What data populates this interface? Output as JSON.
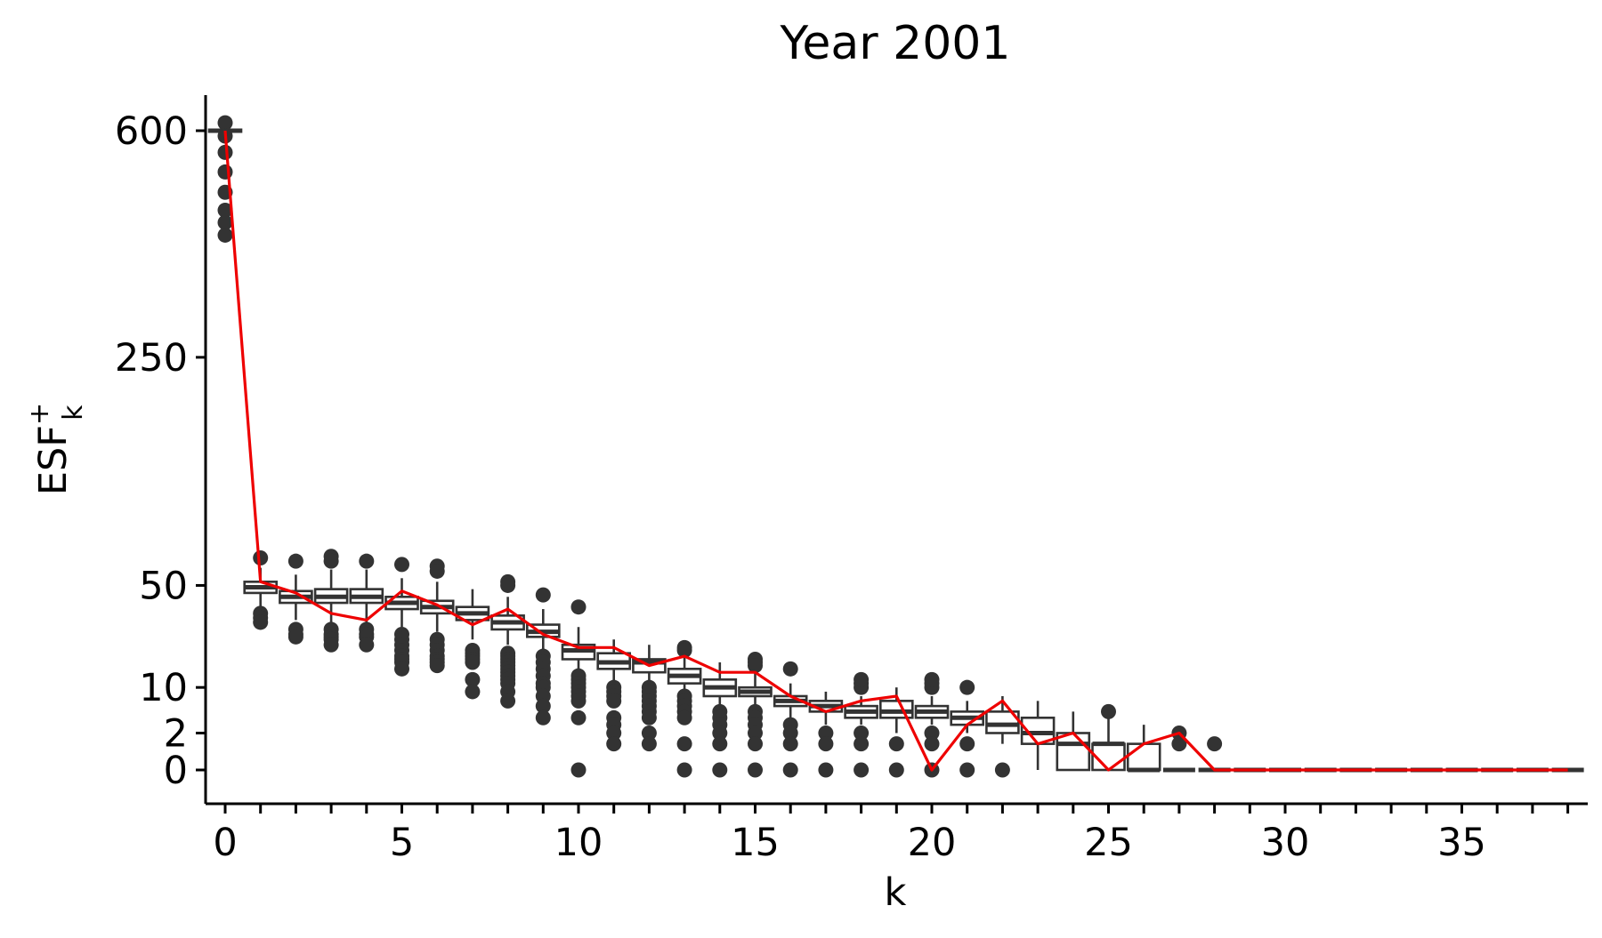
{
  "chart_data": {
    "type": "box",
    "title": "Year 2001",
    "xlabel": "k",
    "ylabel": {
      "main": "ESF",
      "superscript": "+",
      "subscript": "k"
    },
    "y_scale": "pseudo-log",
    "x_ticks": [
      0,
      5,
      10,
      15,
      20,
      25,
      30,
      35
    ],
    "x_tick_labels": [
      "0",
      "5",
      "10",
      "15",
      "20",
      "25",
      "30",
      "35"
    ],
    "y_ticks": [
      0,
      2,
      10,
      50,
      250,
      600
    ],
    "y_tick_labels": [
      "0",
      "2",
      "10",
      "50",
      "250",
      "600"
    ],
    "xlim": [
      -0.5,
      38.5
    ],
    "grid": false,
    "legend": "none",
    "colors": {
      "box": "#333333",
      "outlier": "#333333",
      "observed_line": "#ee0000"
    },
    "boxes": [
      {
        "k": 0,
        "q1": 598,
        "median": 600,
        "q3": 602,
        "wlo": 596,
        "whi": 604,
        "outliers": [
          615,
          590,
          560,
          525,
          490,
          460,
          440,
          420
        ]
      },
      {
        "k": 1,
        "q1": 46,
        "median": 49,
        "q3": 52,
        "wlo": 38,
        "whi": 60,
        "outliers": [
          36,
          34,
          32,
          66
        ]
      },
      {
        "k": 2,
        "q1": 41,
        "median": 44,
        "q3": 47,
        "wlo": 33,
        "whi": 56,
        "outliers": [
          29,
          27,
          26,
          64
        ]
      },
      {
        "k": 3,
        "q1": 41,
        "median": 44,
        "q3": 48,
        "wlo": 31,
        "whi": 59,
        "outliers": [
          29,
          27,
          26,
          25,
          23,
          67,
          64
        ]
      },
      {
        "k": 4,
        "q1": 41,
        "median": 44,
        "q3": 48,
        "wlo": 31,
        "whi": 59,
        "outliers": [
          29,
          27,
          26,
          23,
          64
        ]
      },
      {
        "k": 5,
        "q1": 38,
        "median": 41,
        "q3": 44,
        "wlo": 30,
        "whi": 54,
        "outliers": [
          27,
          25,
          23,
          21,
          19,
          18,
          17,
          15,
          62
        ]
      },
      {
        "k": 6,
        "q1": 36,
        "median": 39,
        "q3": 42,
        "wlo": 28,
        "whi": 52,
        "outliers": [
          25,
          23,
          21,
          19,
          18,
          17,
          16,
          61,
          58
        ]
      },
      {
        "k": 7,
        "q1": 33,
        "median": 36,
        "q3": 39,
        "wlo": 25,
        "whi": 48,
        "outliers": [
          21,
          20,
          19,
          18,
          17,
          12,
          9
        ]
      },
      {
        "k": 8,
        "q1": 29,
        "median": 32,
        "q3": 35,
        "wlo": 23,
        "whi": 44,
        "outliers": [
          20,
          19,
          18,
          17,
          16,
          15,
          14,
          13,
          12,
          11,
          9,
          7,
          52,
          50
        ]
      },
      {
        "k": 9,
        "q1": 26,
        "median": 28,
        "q3": 31,
        "wlo": 20,
        "whi": 38,
        "outliers": [
          19,
          17,
          15,
          13,
          11,
          10,
          8,
          6,
          4,
          45
        ]
      },
      {
        "k": 10,
        "q1": 18,
        "median": 21,
        "q3": 23,
        "wlo": 14,
        "whi": 30,
        "outliers": [
          13,
          12,
          11,
          10,
          9,
          8,
          7,
          4,
          0,
          39
        ]
      },
      {
        "k": 11,
        "q1": 15,
        "median": 17,
        "q3": 20,
        "wlo": 11,
        "whi": 25,
        "outliers": [
          10,
          9,
          8,
          7,
          4,
          3,
          2,
          1
        ]
      },
      {
        "k": 12,
        "q1": 14,
        "median": 17,
        "q3": 18,
        "wlo": 11,
        "whi": 23,
        "outliers": [
          10,
          9,
          8,
          7,
          6,
          5,
          4,
          2,
          1
        ]
      },
      {
        "k": 13,
        "q1": 11,
        "median": 13,
        "q3": 15,
        "wlo": 9,
        "whi": 19,
        "outliers": [
          8,
          7,
          6,
          5,
          4,
          1,
          0,
          22,
          21
        ]
      },
      {
        "k": 14,
        "q1": 8,
        "median": 10,
        "q3": 12,
        "wlo": 6,
        "whi": 17,
        "outliers": [
          5,
          4,
          3,
          2,
          1,
          0
        ]
      },
      {
        "k": 15,
        "q1": 8,
        "median": 9,
        "q3": 10,
        "wlo": 6,
        "whi": 14,
        "outliers": [
          5,
          4,
          3,
          2,
          1,
          0,
          18,
          17,
          16
        ]
      },
      {
        "k": 16,
        "q1": 6,
        "median": 7,
        "q3": 8,
        "wlo": 4,
        "whi": 11,
        "outliers": [
          3,
          2,
          1,
          0,
          15
        ]
      },
      {
        "k": 17,
        "q1": 5,
        "median": 6,
        "q3": 7,
        "wlo": 3,
        "whi": 9,
        "outliers": [
          2,
          1,
          0
        ]
      },
      {
        "k": 18,
        "q1": 4,
        "median": 5,
        "q3": 6,
        "wlo": 3,
        "whi": 8,
        "outliers": [
          2,
          1,
          0,
          10,
          11,
          12
        ]
      },
      {
        "k": 19,
        "q1": 4,
        "median": 5,
        "q3": 7,
        "wlo": 2,
        "whi": 10,
        "outliers": [
          1,
          0
        ]
      },
      {
        "k": 20,
        "q1": 4,
        "median": 5,
        "q3": 6,
        "wlo": 3,
        "whi": 8,
        "outliers": [
          2,
          1,
          0,
          10,
          11,
          12
        ]
      },
      {
        "k": 21,
        "q1": 3,
        "median": 4,
        "q3": 5,
        "wlo": 2,
        "whi": 7,
        "outliers": [
          1,
          0,
          10
        ]
      },
      {
        "k": 22,
        "q1": 2,
        "median": 3,
        "q3": 5,
        "wlo": 1,
        "whi": 8,
        "outliers": [
          0
        ]
      },
      {
        "k": 23,
        "q1": 1,
        "median": 2,
        "q3": 4,
        "wlo": 0,
        "whi": 7,
        "outliers": []
      },
      {
        "k": 24,
        "q1": 0,
        "median": 1,
        "q3": 2,
        "wlo": 0,
        "whi": 5,
        "outliers": []
      },
      {
        "k": 25,
        "q1": 0,
        "median": 1,
        "q3": 1,
        "wlo": 0,
        "whi": 4,
        "outliers": [
          5
        ]
      },
      {
        "k": 26,
        "q1": 0,
        "median": 0,
        "q3": 1,
        "wlo": 0,
        "whi": 3,
        "outliers": []
      },
      {
        "k": 27,
        "q1": 0,
        "median": 0,
        "q3": 0,
        "wlo": 0,
        "whi": 0,
        "outliers": [
          1,
          2
        ]
      },
      {
        "k": 28,
        "q1": 0,
        "median": 0,
        "q3": 0,
        "wlo": 0,
        "whi": 0,
        "outliers": [
          1
        ]
      },
      {
        "k": 29,
        "q1": 0,
        "median": 0,
        "q3": 0,
        "wlo": 0,
        "whi": 0,
        "outliers": []
      },
      {
        "k": 30,
        "q1": 0,
        "median": 0,
        "q3": 0,
        "wlo": 0,
        "whi": 0,
        "outliers": []
      },
      {
        "k": 31,
        "q1": 0,
        "median": 0,
        "q3": 0,
        "wlo": 0,
        "whi": 0,
        "outliers": []
      },
      {
        "k": 32,
        "q1": 0,
        "median": 0,
        "q3": 0,
        "wlo": 0,
        "whi": 0,
        "outliers": []
      },
      {
        "k": 33,
        "q1": 0,
        "median": 0,
        "q3": 0,
        "wlo": 0,
        "whi": 0,
        "outliers": []
      },
      {
        "k": 34,
        "q1": 0,
        "median": 0,
        "q3": 0,
        "wlo": 0,
        "whi": 0,
        "outliers": []
      },
      {
        "k": 35,
        "q1": 0,
        "median": 0,
        "q3": 0,
        "wlo": 0,
        "whi": 0,
        "outliers": []
      },
      {
        "k": 36,
        "q1": 0,
        "median": 0,
        "q3": 0,
        "wlo": 0,
        "whi": 0,
        "outliers": []
      },
      {
        "k": 37,
        "q1": 0,
        "median": 0,
        "q3": 0,
        "wlo": 0,
        "whi": 0,
        "outliers": []
      },
      {
        "k": 38,
        "q1": 0,
        "median": 0,
        "q3": 0,
        "wlo": 0,
        "whi": 0,
        "outliers": []
      }
    ],
    "observed_line": {
      "x": [
        0,
        1,
        2,
        3,
        4,
        5,
        6,
        7,
        8,
        9,
        10,
        11,
        12,
        13,
        14,
        15,
        16,
        17,
        18,
        19,
        20,
        21,
        22,
        23,
        24,
        25,
        26,
        27,
        28,
        29,
        30,
        31,
        32,
        33,
        34,
        35,
        36,
        37,
        38
      ],
      "y": [
        600,
        52,
        46,
        36,
        33,
        47,
        40,
        31,
        38,
        27,
        22,
        22,
        16,
        19,
        14,
        14,
        8,
        5,
        7,
        8,
        0,
        3,
        7,
        1,
        2,
        0,
        1,
        2,
        0,
        0,
        0,
        0,
        0,
        0,
        0,
        0,
        0,
        0,
        0
      ]
    }
  }
}
